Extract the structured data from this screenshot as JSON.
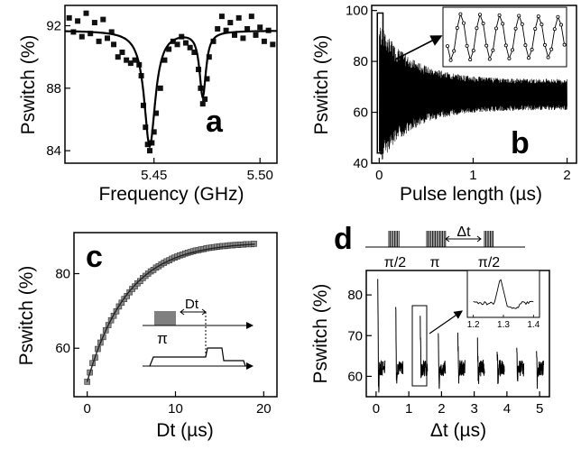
{
  "chart_data": [
    {
      "panel": "a",
      "type": "scatter",
      "panel_label": "a",
      "xlabel": "Frequency (GHz)",
      "ylabel": "Pswitch (%)",
      "xlim": [
        5.408,
        5.508
      ],
      "ylim": [
        83.2,
        93.3
      ],
      "xticks": [
        "5.45",
        "5.50"
      ],
      "xtick_values": [
        5.45,
        5.5
      ],
      "yticks": [
        "84",
        "88",
        "92"
      ],
      "ytick_values": [
        84,
        88,
        92
      ],
      "baseline": 91.7,
      "dips": [
        {
          "center": 5.448,
          "depth": 7.4,
          "width": 0.0032
        },
        {
          "center": 5.473,
          "depth": 4.2,
          "width": 0.0018
        }
      ],
      "points": [
        [
          5.41,
          92.5
        ],
        [
          5.412,
          91.6
        ],
        [
          5.414,
          92.3
        ],
        [
          5.416,
          91.3
        ],
        [
          5.418,
          92.8
        ],
        [
          5.42,
          91.5
        ],
        [
          5.422,
          92.2
        ],
        [
          5.424,
          91.0
        ],
        [
          5.426,
          92.4
        ],
        [
          5.428,
          91.2
        ],
        [
          5.43,
          91.6
        ],
        [
          5.431,
          90.8
        ],
        [
          5.433,
          90.0
        ],
        [
          5.435,
          90.3
        ],
        [
          5.437,
          89.8
        ],
        [
          5.439,
          89.6
        ],
        [
          5.441,
          89.8
        ],
        [
          5.443,
          89.5
        ],
        [
          5.444,
          88.8
        ],
        [
          5.445,
          86.9
        ],
        [
          5.446,
          85.5
        ],
        [
          5.447,
          84.4
        ],
        [
          5.448,
          84.0
        ],
        [
          5.449,
          84.5
        ],
        [
          5.45,
          85.2
        ],
        [
          5.451,
          86.4
        ],
        [
          5.453,
          88.0
        ],
        [
          5.455,
          89.8
        ],
        [
          5.457,
          90.5
        ],
        [
          5.459,
          91.0
        ],
        [
          5.461,
          90.8
        ],
        [
          5.463,
          91.3
        ],
        [
          5.465,
          90.9
        ],
        [
          5.467,
          90.6
        ],
        [
          5.469,
          90.3
        ],
        [
          5.471,
          89.2
        ],
        [
          5.472,
          88.0
        ],
        [
          5.473,
          87.0
        ],
        [
          5.474,
          87.3
        ],
        [
          5.475,
          88.6
        ],
        [
          5.476,
          90.0
        ],
        [
          5.478,
          91.0
        ],
        [
          5.48,
          91.8
        ],
        [
          5.482,
          92.6
        ],
        [
          5.484,
          91.7
        ],
        [
          5.486,
          92.2
        ],
        [
          5.488,
          91.4
        ],
        [
          5.49,
          92.5
        ],
        [
          5.492,
          91.2
        ],
        [
          5.494,
          91.8
        ],
        [
          5.496,
          92.6
        ],
        [
          5.498,
          91.4
        ],
        [
          5.5,
          91.9
        ],
        [
          5.502,
          91.0
        ],
        [
          5.504,
          91.7
        ],
        [
          5.506,
          90.8
        ]
      ]
    },
    {
      "panel": "b",
      "type": "line",
      "panel_label": "b",
      "xlabel": "Pulse length (µs)",
      "ylabel": "Pswitch (%)",
      "xlim": [
        -0.08,
        2.1
      ],
      "ylim": [
        40,
        102
      ],
      "xticks": [
        "0",
        "1",
        "2"
      ],
      "xtick_values": [
        0,
        1,
        2
      ],
      "yticks": [
        "40",
        "60",
        "80",
        "100"
      ],
      "ytick_values": [
        40,
        60,
        80,
        100
      ],
      "envelope": {
        "center": 67,
        "amp0": 28,
        "amp_inf": 6,
        "decay_us": 0.35
      },
      "zoom_box": {
        "x": [
          -0.02,
          0.04
        ],
        "y": [
          44,
          99
        ]
      }
    },
    {
      "panel": "c",
      "type": "scatter",
      "panel_label": "c",
      "xlabel": "Dt (µs)",
      "ylabel": "Pswitch (%)",
      "xlim": [
        -1.5,
        21.5
      ],
      "ylim": [
        47,
        91
      ],
      "xticks": [
        "0",
        "10",
        "20"
      ],
      "xtick_values": [
        0,
        10,
        20
      ],
      "yticks": [
        "60",
        "80"
      ],
      "ytick_values": [
        60,
        80
      ],
      "fit": {
        "asymptote": 88.5,
        "start": 51,
        "tau_us": 4.6
      },
      "points": [
        [
          0,
          51.0
        ],
        [
          0.3,
          53.5
        ],
        [
          0.6,
          56.0
        ],
        [
          0.9,
          57.5
        ],
        [
          1.2,
          59.8
        ],
        [
          1.5,
          61.5
        ],
        [
          1.8,
          63.0
        ],
        [
          2.1,
          64.8
        ],
        [
          2.4,
          66.2
        ],
        [
          2.7,
          67.5
        ],
        [
          3.0,
          68.7
        ],
        [
          3.3,
          69.9
        ],
        [
          3.6,
          71.2
        ],
        [
          3.9,
          72.2
        ],
        [
          4.2,
          73.2
        ],
        [
          4.5,
          74.0
        ],
        [
          4.8,
          75.0
        ],
        [
          5.1,
          75.9
        ],
        [
          5.4,
          76.6
        ],
        [
          5.7,
          77.4
        ],
        [
          6.0,
          78.0
        ],
        [
          6.3,
          78.8
        ],
        [
          6.6,
          79.4
        ],
        [
          6.9,
          80.0
        ],
        [
          7.2,
          80.6
        ],
        [
          7.5,
          81.0
        ],
        [
          7.8,
          81.6
        ],
        [
          8.1,
          82.0
        ],
        [
          8.4,
          82.5
        ],
        [
          8.7,
          82.9
        ],
        [
          9.0,
          83.3
        ],
        [
          9.3,
          83.6
        ],
        [
          9.6,
          84.0
        ],
        [
          9.9,
          84.3
        ],
        [
          10.2,
          84.6
        ],
        [
          10.5,
          84.9
        ],
        [
          10.8,
          85.1
        ],
        [
          11.1,
          85.4
        ],
        [
          11.4,
          85.6
        ],
        [
          11.7,
          85.8
        ],
        [
          12.0,
          86.0
        ],
        [
          12.3,
          86.2
        ],
        [
          12.6,
          86.3
        ],
        [
          12.9,
          86.5
        ],
        [
          13.2,
          86.6
        ],
        [
          13.5,
          86.8
        ],
        [
          13.8,
          86.9
        ],
        [
          14.1,
          87.0
        ],
        [
          14.4,
          87.1
        ],
        [
          14.7,
          87.2
        ],
        [
          15.0,
          87.3
        ],
        [
          15.3,
          87.4
        ],
        [
          15.6,
          87.4
        ],
        [
          15.9,
          87.5
        ],
        [
          16.2,
          87.6
        ],
        [
          16.5,
          87.6
        ],
        [
          16.8,
          87.7
        ],
        [
          17.1,
          87.7
        ],
        [
          17.4,
          87.8
        ],
        [
          17.7,
          87.8
        ],
        [
          18.0,
          87.9
        ],
        [
          18.3,
          87.9
        ],
        [
          18.6,
          87.9
        ],
        [
          18.9,
          88.0
        ]
      ],
      "inset_labels": {
        "delay": "Dt",
        "pulse": "π"
      }
    },
    {
      "panel": "d",
      "type": "line",
      "panel_label": "d",
      "xlabel": "Δt (µs)",
      "ylabel": "Pswitch (%)",
      "xlim": [
        -0.3,
        5.3
      ],
      "ylim": [
        55,
        86
      ],
      "xticks": [
        "0",
        "1",
        "2",
        "3",
        "4",
        "5"
      ],
      "xtick_values": [
        0,
        1,
        2,
        3,
        4,
        5
      ],
      "yticks": [
        "60",
        "70",
        "80"
      ],
      "ytick_values": [
        60,
        70,
        80
      ],
      "bursts": [
        {
          "t": 0.05,
          "peak": 83,
          "low": 56
        },
        {
          "t": 0.6,
          "peak": 79,
          "low": 57
        },
        {
          "t": 1.35,
          "peak": 74,
          "low": 58
        },
        {
          "t": 1.9,
          "peak": 72,
          "low": 58
        },
        {
          "t": 2.5,
          "peak": 70,
          "low": 58
        },
        {
          "t": 3.1,
          "peak": 68,
          "low": 58
        },
        {
          "t": 3.7,
          "peak": 67,
          "low": 58
        },
        {
          "t": 4.3,
          "peak": 66,
          "low": 58
        },
        {
          "t": 4.9,
          "peak": 65,
          "low": 58
        }
      ],
      "zoom_box": {
        "x": [
          1.15,
          1.45
        ],
        "y": [
          61,
          73
        ]
      },
      "inset": {
        "xticks": [
          "1.2",
          "1.3",
          "1.4"
        ],
        "xtick_values": [
          1.2,
          1.3,
          1.4
        ],
        "xlim": [
          1.18,
          1.42
        ]
      },
      "sequence_labels": {
        "first": "π/2",
        "middle": "π",
        "last": "π/2",
        "delay": "Δt"
      }
    }
  ]
}
